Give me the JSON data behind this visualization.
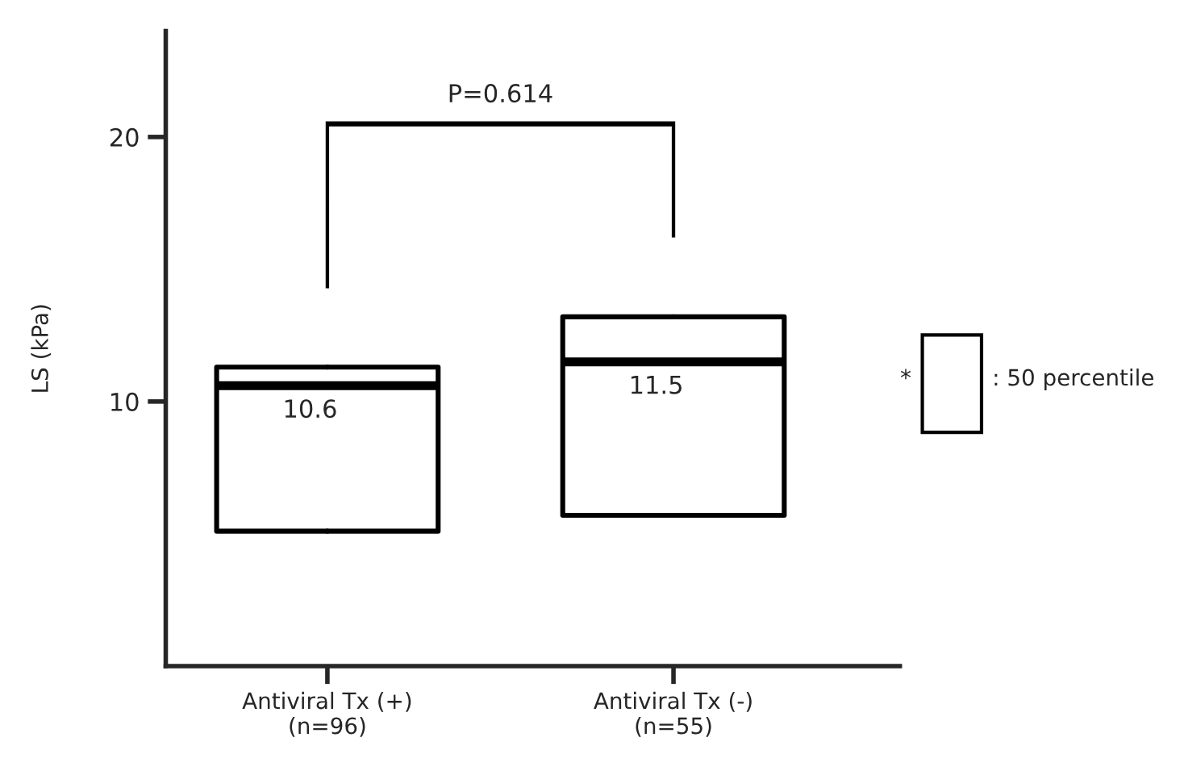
{
  "chart_data": {
    "type": "box",
    "ylabel": "LS (kPa)",
    "categories": [
      "Antiviral Tx (+)\n(n=96)",
      "Antiviral Tx (-)\n(n=55)"
    ],
    "boxes": [
      {
        "low": 5.1,
        "q1": 5.1,
        "median": 10.6,
        "q3": 11.3,
        "high": 11.3
      },
      {
        "low": 5.7,
        "q1": 5.7,
        "median": 11.5,
        "q3": 13.2,
        "high": 13.2
      }
    ],
    "value_labels": [
      "10.6",
      "11.5"
    ],
    "ylim": [
      0,
      24
    ],
    "yticks": [
      10,
      20
    ],
    "grid": false,
    "annotations": [
      "P=0.614",
      "*",
      ": 50 percentile"
    ]
  }
}
